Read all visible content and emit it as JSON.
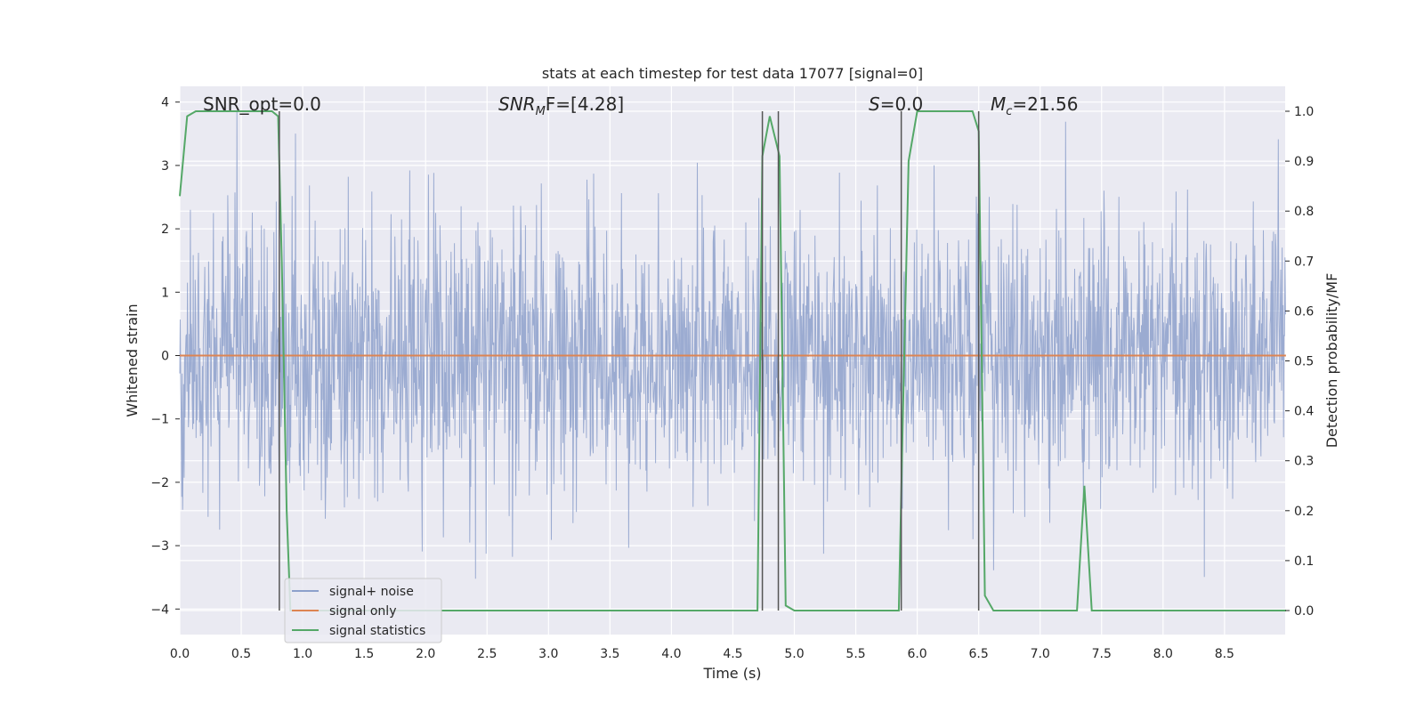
{
  "chart_data": {
    "type": "line",
    "title": "stats at each timestep for test data 17077 [signal=0]",
    "xlabel": "Time (s)",
    "ylabel": "Whitened strain",
    "y2label": "Detection probability/MF",
    "xlim": [
      0.0,
      9.0
    ],
    "ylim": [
      -4.3,
      4.25
    ],
    "y2lim": [
      -0.05,
      1.04
    ],
    "xticks": [
      "0.0",
      "0.5",
      "1.0",
      "1.5",
      "2.0",
      "2.5",
      "3.0",
      "3.5",
      "4.0",
      "4.5",
      "5.0",
      "5.5",
      "6.0",
      "6.5",
      "7.0",
      "7.5",
      "8.0",
      "8.5"
    ],
    "yticks": [
      "4",
      "3",
      "2",
      "1",
      "0",
      "−1",
      "−2",
      "−3",
      "−4"
    ],
    "y2ticks": [
      "1.0",
      "0.9",
      "0.8",
      "0.7",
      "0.6",
      "0.5",
      "0.4",
      "0.3",
      "0.2",
      "0.1",
      "0.0"
    ],
    "grid": true,
    "legend_position": "lower-left",
    "annotations": {
      "snr_opt": "SNR_opt=0.0",
      "snr_mf_label": "SNR",
      "snr_mf_sub": "M",
      "snr_mf_tail": "F=[4.28]",
      "s_label": "S",
      "s_value": "=0.0",
      "mc_label": "M",
      "mc_sub": "c",
      "mc_value": "=21.56"
    },
    "series": [
      {
        "name": "signal+ noise",
        "color": "#8da0cb",
        "kind": "noise",
        "sample_rate_hz": 256,
        "approx_envelope": {
          "typical_upper": 2.2,
          "typical_lower": -2.0,
          "max": 3.85,
          "min": -4.0
        }
      },
      {
        "name": "signal only",
        "color": "#dd8452",
        "x": [
          0.0,
          9.0
        ],
        "y": [
          0.0,
          0.0
        ]
      },
      {
        "name": "signal statistics",
        "color": "#55a868",
        "axis": "right",
        "x": [
          0.0,
          0.06,
          0.13,
          0.75,
          0.8,
          0.83,
          0.87,
          0.9,
          4.7,
          4.74,
          4.8,
          4.88,
          4.93,
          5.0,
          5.85,
          5.88,
          5.93,
          6.0,
          6.45,
          6.5,
          6.55,
          6.62,
          7.25,
          7.3,
          7.36,
          7.42,
          9.0
        ],
        "y": [
          0.83,
          0.99,
          1.0,
          1.0,
          0.99,
          0.7,
          0.2,
          0.0,
          0.0,
          0.91,
          0.99,
          0.91,
          0.01,
          0.0,
          0.0,
          0.35,
          0.9,
          1.0,
          1.0,
          0.96,
          0.03,
          0.0,
          0.0,
          0.0,
          0.25,
          0.0,
          0.0
        ]
      }
    ],
    "vertical_markers": {
      "color": "#555555",
      "x": [
        0.81,
        4.74,
        4.87,
        5.87,
        6.5
      ],
      "y2_top": 1.0,
      "y2_bottom": 0.0
    },
    "legend": [
      "signal+ noise",
      "signal only",
      "signal statistics"
    ]
  }
}
